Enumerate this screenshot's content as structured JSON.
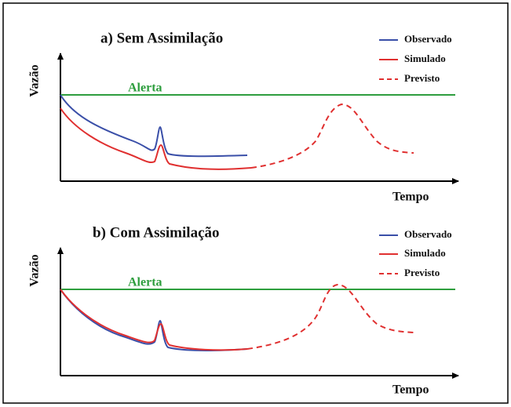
{
  "panels": [
    {
      "title": "a) Sem Assimilação",
      "y_label": "Vazão",
      "x_label": "Tempo",
      "alert_label": "Alerta",
      "legend": [
        "Observado",
        "Simulado",
        "Previsto"
      ]
    },
    {
      "title": "b) Com Assimilação",
      "y_label": "Vazão",
      "x_label": "Tempo",
      "alert_label": "Alerta",
      "legend": [
        "Observado",
        "Simulado",
        "Previsto"
      ]
    }
  ]
}
